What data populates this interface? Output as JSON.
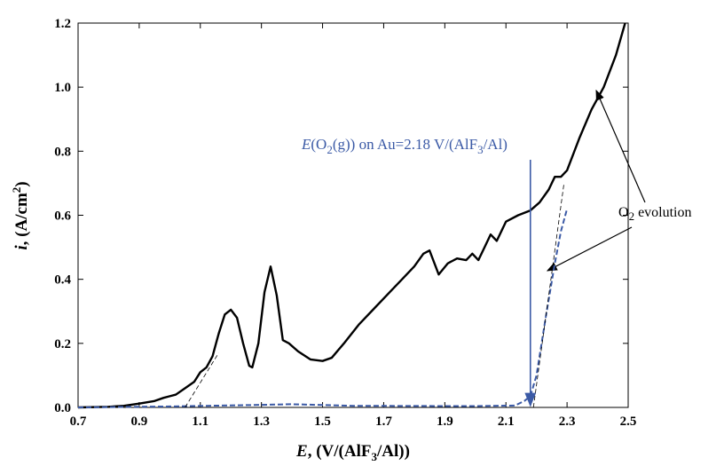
{
  "chart_data": {
    "type": "line",
    "xlabel": [
      "E",
      ", (V/(AlF",
      "3",
      "/Al))"
    ],
    "ylabel": [
      "i",
      ", (A/cm",
      "2",
      ")"
    ],
    "xlim": [
      0.7,
      2.5
    ],
    "ylim": [
      0,
      1.2
    ],
    "xticks": [
      0.7,
      0.9,
      1.1,
      1.3,
      1.5,
      1.7,
      1.9,
      2.1,
      2.3,
      2.5
    ],
    "yticks": [
      {
        "value": 0,
        "label": "0.0"
      },
      0.2,
      0.4,
      0.6,
      0.8,
      {
        "value": 1,
        "label": "1.0"
      },
      1.2
    ],
    "series": [
      {
        "color": "#000000",
        "style": "solid",
        "x": [
          0.7,
          0.8,
          0.85,
          0.9,
          0.95,
          0.98,
          1.0,
          1.02,
          1.05,
          1.08,
          1.1,
          1.12,
          1.14,
          1.16,
          1.18,
          1.2,
          1.22,
          1.24,
          1.26,
          1.27,
          1.29,
          1.31,
          1.33,
          1.35,
          1.37,
          1.39,
          1.42,
          1.46,
          1.5,
          1.53,
          1.57,
          1.62,
          1.67,
          1.72,
          1.76,
          1.8,
          1.83,
          1.85,
          1.87,
          1.88,
          1.91,
          1.94,
          1.97,
          1.99,
          2.01,
          2.03,
          2.05,
          2.07,
          2.09,
          2.1,
          2.14,
          2.18,
          2.21,
          2.24,
          2.26,
          2.28,
          2.3,
          2.34,
          2.38,
          2.42,
          2.46,
          2.49
        ],
        "y": [
          0.0,
          0.002,
          0.005,
          0.012,
          0.02,
          0.03,
          0.035,
          0.04,
          0.06,
          0.08,
          0.11,
          0.125,
          0.16,
          0.23,
          0.29,
          0.305,
          0.28,
          0.2,
          0.13,
          0.125,
          0.2,
          0.36,
          0.44,
          0.35,
          0.21,
          0.2,
          0.175,
          0.15,
          0.145,
          0.155,
          0.2,
          0.26,
          0.31,
          0.36,
          0.4,
          0.44,
          0.48,
          0.49,
          0.44,
          0.415,
          0.45,
          0.465,
          0.46,
          0.48,
          0.46,
          0.5,
          0.54,
          0.52,
          0.56,
          0.58,
          0.6,
          0.615,
          0.64,
          0.68,
          0.72,
          0.72,
          0.74,
          0.84,
          0.93,
          1.0,
          1.1,
          1.2
        ]
      },
      {
        "color": "#3b5aa6",
        "style": "dashed",
        "x": [
          0.7,
          1.0,
          1.3,
          1.4,
          1.6,
          2.0,
          2.13,
          2.16,
          2.18,
          2.2,
          2.23,
          2.26,
          2.28,
          2.3
        ],
        "y": [
          0.0,
          0.003,
          0.008,
          0.01,
          0.005,
          0.004,
          0.006,
          0.02,
          0.035,
          0.1,
          0.28,
          0.45,
          0.55,
          0.62
        ]
      },
      {
        "color": "#000000",
        "style": "thin-dashed",
        "x": [
          1.05,
          1.16
        ],
        "y": [
          0.0,
          0.17
        ]
      },
      {
        "color": "#000000",
        "style": "thin-dashed",
        "x": [
          2.19,
          2.29
        ],
        "y": [
          0.0,
          0.7
        ]
      }
    ],
    "annotations": [
      {
        "text": [
          "E",
          "(O",
          "2",
          "(g)) on Au=2.18 V/(AlF",
          "3",
          "/Al)"
        ],
        "x": 2.18,
        "color": "#3b5aa6"
      },
      {
        "text": [
          "O",
          "2",
          " evolution"
        ],
        "color": "#000000"
      }
    ]
  }
}
